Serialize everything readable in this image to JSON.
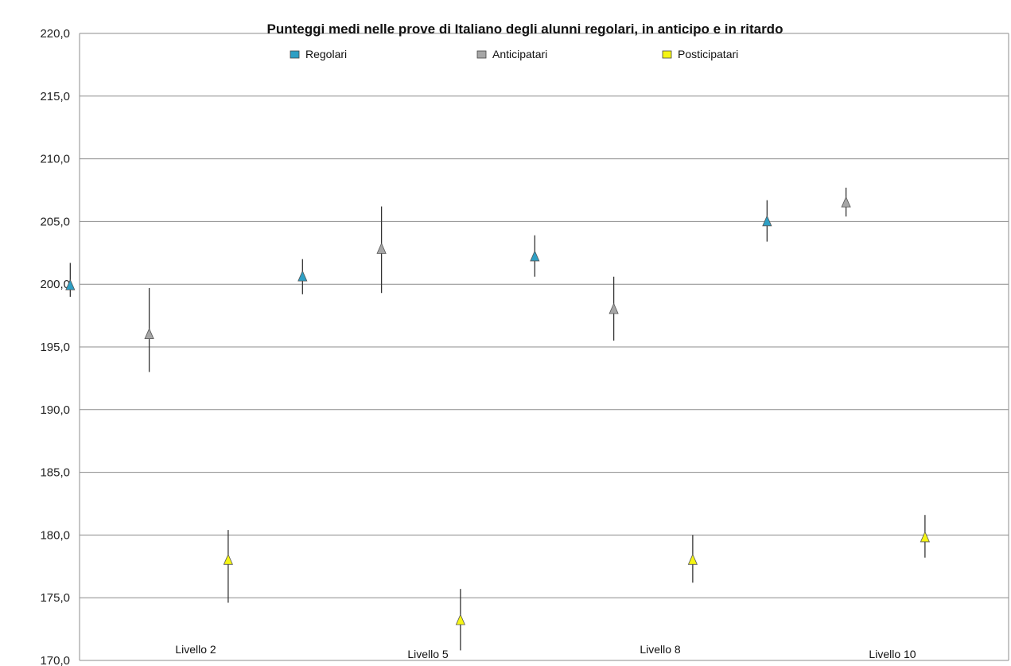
{
  "chart_data": {
    "type": "scatter",
    "title": "Punteggi medi nelle prove di Italiano degli alunni regolari, in anticipo e in  ritardo",
    "xlabel": "",
    "ylabel": "",
    "ylim": [
      170,
      220
    ],
    "yticks": [
      "170,0",
      "175,0",
      "180,0",
      "185,0",
      "190,0",
      "195,0",
      "200,0",
      "205,0",
      "210,0",
      "215,0",
      "220,0"
    ],
    "categories": [
      "Livello 2",
      "Livello 5",
      "Livello 8",
      "Livello 10"
    ],
    "grid": true,
    "legend_position": "top",
    "marker": "triangle",
    "error_bars": true,
    "series": [
      {
        "name": "Regolari",
        "color": "#2e9fc4",
        "values": [
          199.9,
          200.6,
          202.2,
          205.0
        ],
        "error_low": [
          199.0,
          199.2,
          200.6,
          203.4
        ],
        "error_high": [
          201.7,
          202.0,
          203.9,
          206.7
        ]
      },
      {
        "name": "Anticipatari",
        "color": "#a6a6a6",
        "values": [
          196.0,
          202.8,
          198.0,
          206.5
        ],
        "error_low": [
          193.0,
          199.3,
          195.5,
          205.4
        ],
        "error_high": [
          199.7,
          206.2,
          200.6,
          207.7
        ]
      },
      {
        "name": "Posticipatari",
        "color": "#f5f514",
        "values": [
          178.0,
          173.2,
          178.0,
          179.8
        ],
        "error_low": [
          174.6,
          170.8,
          176.2,
          178.2
        ],
        "error_high": [
          180.4,
          175.7,
          180.0,
          181.6
        ]
      }
    ]
  }
}
